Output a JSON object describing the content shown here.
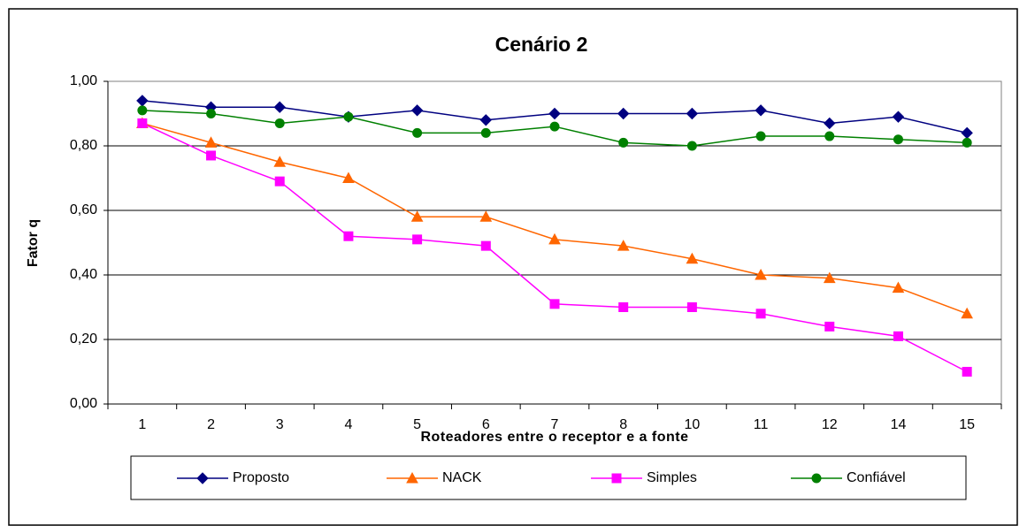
{
  "chart_data": {
    "type": "line",
    "title": "Cenário 2",
    "x_label": "Roteadores entre o receptor e a fonte",
    "y_label": "Fator q",
    "categories": [
      "1",
      "2",
      "3",
      "4",
      "5",
      "6",
      "7",
      "8",
      "10",
      "11",
      "12",
      "14",
      "15"
    ],
    "series": [
      {
        "name": "Proposto",
        "color": "#000080",
        "marker": "diamond",
        "values": [
          0.94,
          0.92,
          0.92,
          0.89,
          0.91,
          0.88,
          0.9,
          0.9,
          0.9,
          0.91,
          0.87,
          0.89,
          0.84
        ]
      },
      {
        "name": "NACK",
        "color": "#FF6600",
        "marker": "triangle",
        "values": [
          0.87,
          0.81,
          0.75,
          0.7,
          0.58,
          0.58,
          0.51,
          0.49,
          0.45,
          0.4,
          0.39,
          0.36,
          0.28
        ]
      },
      {
        "name": "Simples",
        "color": "#FF00FF",
        "marker": "square",
        "values": [
          0.87,
          0.77,
          0.69,
          0.52,
          0.51,
          0.49,
          0.31,
          0.3,
          0.3,
          0.28,
          0.24,
          0.21,
          0.1
        ]
      },
      {
        "name": "Confiável",
        "color": "#008000",
        "marker": "circle",
        "values": [
          0.91,
          0.9,
          0.87,
          0.89,
          0.84,
          0.84,
          0.86,
          0.81,
          0.8,
          0.83,
          0.83,
          0.82,
          0.81
        ]
      }
    ],
    "ylim": [
      0,
      1
    ],
    "yticks": [
      {
        "value": 0,
        "label": "0,00"
      },
      {
        "value": 0.2,
        "label": "0,20"
      },
      {
        "value": 0.4,
        "label": "0,40"
      },
      {
        "value": 0.6,
        "label": "0,60"
      },
      {
        "value": 0.8,
        "label": "0,80"
      },
      {
        "value": 1,
        "label": "1,00"
      }
    ],
    "grid": true,
    "legend": "bottom"
  }
}
